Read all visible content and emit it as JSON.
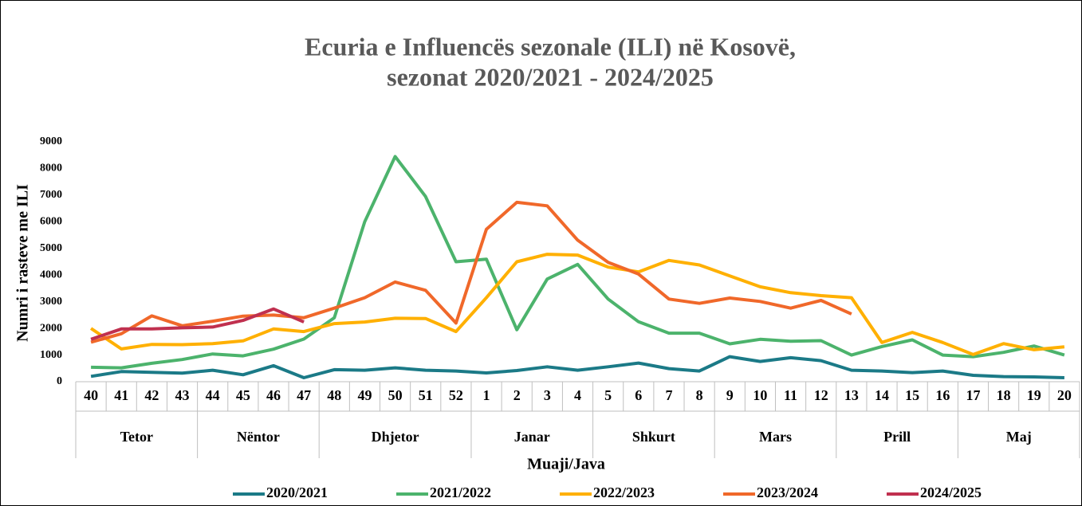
{
  "chart_data": {
    "type": "line",
    "title": [
      "Ecuria e Influencës sezonale (ILI) në Kosovë,",
      "sezonat 2020/2021 - 2024/2025"
    ],
    "y_label": "Numri i rasteve me ILI",
    "x_label": "Muaji/Java",
    "groups": [
      {
        "label": "Tetor",
        "categories": [
          "40",
          "41",
          "42",
          "43"
        ]
      },
      {
        "label": "Nëntor",
        "categories": [
          "44",
          "45",
          "46",
          "47"
        ]
      },
      {
        "label": "Dhjetor",
        "categories": [
          "48",
          "49",
          "50",
          "51",
          "52"
        ]
      },
      {
        "label": "Janar",
        "categories": [
          "1",
          "2",
          "3",
          "4"
        ]
      },
      {
        "label": "Shkurt",
        "categories": [
          "5",
          "6",
          "7",
          "8"
        ]
      },
      {
        "label": "Mars",
        "categories": [
          "9",
          "10",
          "11",
          "12"
        ]
      },
      {
        "label": "Prill",
        "categories": [
          "13",
          "14",
          "15",
          "16"
        ]
      },
      {
        "label": "Maj",
        "categories": [
          "17",
          "18",
          "19",
          "20"
        ]
      }
    ],
    "series": [
      {
        "name": "2020/2021",
        "color": "#1b7a87",
        "values": [
          200,
          380,
          350,
          320,
          430,
          260,
          600,
          150,
          450,
          430,
          520,
          430,
          400,
          330,
          420,
          560,
          430,
          560,
          700,
          490,
          400,
          940,
          760,
          900,
          790,
          430,
          400,
          340,
          400,
          240,
          190,
          180,
          150
        ]
      },
      {
        "name": "2021/2022",
        "color": "#4cb36c",
        "values": [
          540,
          520,
          690,
          830,
          1040,
          970,
          1220,
          1600,
          2400,
          6000,
          8450,
          6950,
          4500,
          4600,
          1950,
          3850,
          4400,
          3100,
          2250,
          1820,
          1820,
          1420,
          1590,
          1520,
          1540,
          1000,
          1320,
          1570,
          1000,
          940,
          1100,
          1340,
          1000
        ]
      },
      {
        "name": "2022/2023",
        "color": "#ffb000",
        "values": [
          2000,
          1230,
          1400,
          1390,
          1430,
          1530,
          1980,
          1880,
          2180,
          2240,
          2380,
          2370,
          1880,
          3150,
          4500,
          4780,
          4750,
          4300,
          4120,
          4550,
          4380,
          3970,
          3560,
          3340,
          3230,
          3150,
          1470,
          1850,
          1470,
          1020,
          1430,
          1200,
          1310
        ]
      },
      {
        "name": "2023/2024",
        "color": "#f0682a",
        "values": [
          1480,
          1800,
          2470,
          2100,
          2270,
          2460,
          2500,
          2400,
          2760,
          3150,
          3740,
          3430,
          2200,
          5720,
          6730,
          6600,
          5310,
          4480,
          4040,
          3100,
          2940,
          3140,
          3010,
          2760,
          3050,
          2540,
          null,
          null,
          null,
          null,
          null,
          null,
          null
        ]
      },
      {
        "name": "2024/2025",
        "color": "#c0304f",
        "values": [
          1590,
          1980,
          1980,
          2020,
          2050,
          2300,
          2730,
          2240,
          null,
          null,
          null,
          null,
          null,
          null,
          null,
          null,
          null,
          null,
          null,
          null,
          null,
          null,
          null,
          null,
          null,
          null,
          null,
          null,
          null,
          null,
          null,
          null,
          null
        ]
      }
    ],
    "ylim": [
      0,
      9000
    ],
    "yticks": [
      0,
      1000,
      2000,
      3000,
      4000,
      5000,
      6000,
      7000,
      8000,
      9000
    ],
    "grid": false
  }
}
